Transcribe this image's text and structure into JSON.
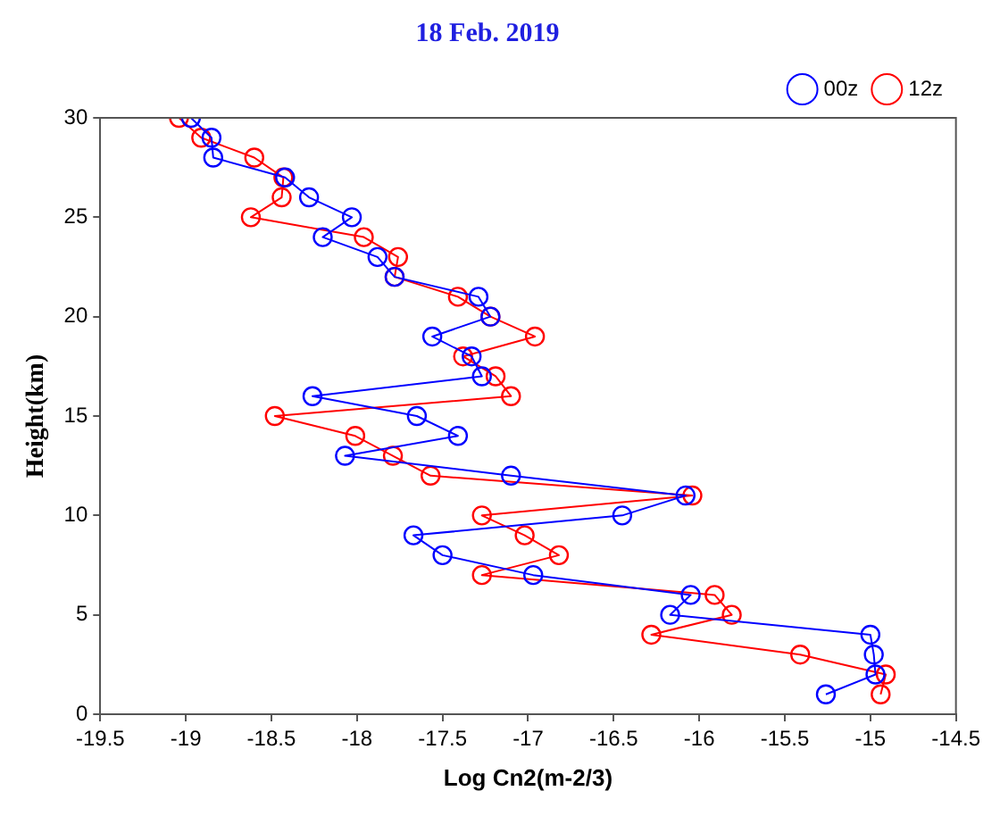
{
  "chart_data": {
    "type": "line",
    "title": "18 Feb. 2019",
    "xlabel": "Log Cn2(m-2/3)",
    "ylabel": "Height(km)",
    "xlim": [
      -19.5,
      -14.5
    ],
    "xticks": [
      -19.5,
      -19,
      -18.5,
      -18,
      -17.5,
      -17,
      -16.5,
      -16,
      -15.5,
      -15,
      -14.5
    ],
    "ylim": [
      0,
      30
    ],
    "yticks": [
      0,
      5,
      10,
      15,
      20,
      25,
      30
    ],
    "grid": false,
    "legend": "top right",
    "marker": "circle",
    "line_style": "solid",
    "series": [
      {
        "name": "00z",
        "color": "#0000ff",
        "x": [
          -15.26,
          -14.97,
          -14.98,
          -15.0,
          -16.17,
          -16.05,
          -16.97,
          -17.5,
          -17.67,
          -16.45,
          -16.08,
          -17.1,
          -18.07,
          -17.41,
          -17.65,
          -18.26,
          -17.27,
          -17.33,
          -17.56,
          -17.22,
          -17.29,
          -17.78,
          -17.88,
          -18.2,
          -18.03,
          -18.28,
          -18.42,
          -18.84,
          -18.85,
          -18.97
        ],
        "values": [
          1,
          2,
          3,
          4,
          5,
          6,
          7,
          8,
          9,
          10,
          11,
          12,
          13,
          14,
          15,
          16,
          17,
          18,
          19,
          20,
          21,
          22,
          23,
          24,
          25,
          26,
          27,
          28,
          29,
          30
        ]
      },
      {
        "name": "12z",
        "color": "#ff0000",
        "x": [
          -14.94,
          -14.91,
          -15.41,
          -16.28,
          -15.81,
          -15.91,
          -17.27,
          -16.82,
          -17.02,
          -17.27,
          -16.04,
          -17.57,
          -17.79,
          -18.01,
          -18.48,
          -17.1,
          -17.19,
          -17.38,
          -16.96,
          -17.22,
          -17.41,
          -17.78,
          -17.76,
          -17.96,
          -18.62,
          -18.44,
          -18.43,
          -18.6,
          -18.91,
          -19.04
        ],
        "values": [
          1,
          2,
          3,
          4,
          5,
          6,
          7,
          8,
          9,
          10,
          11,
          12,
          13,
          14,
          15,
          16,
          17,
          18,
          19,
          20,
          21,
          22,
          23,
          24,
          25,
          26,
          27,
          28,
          29,
          30
        ]
      }
    ]
  }
}
